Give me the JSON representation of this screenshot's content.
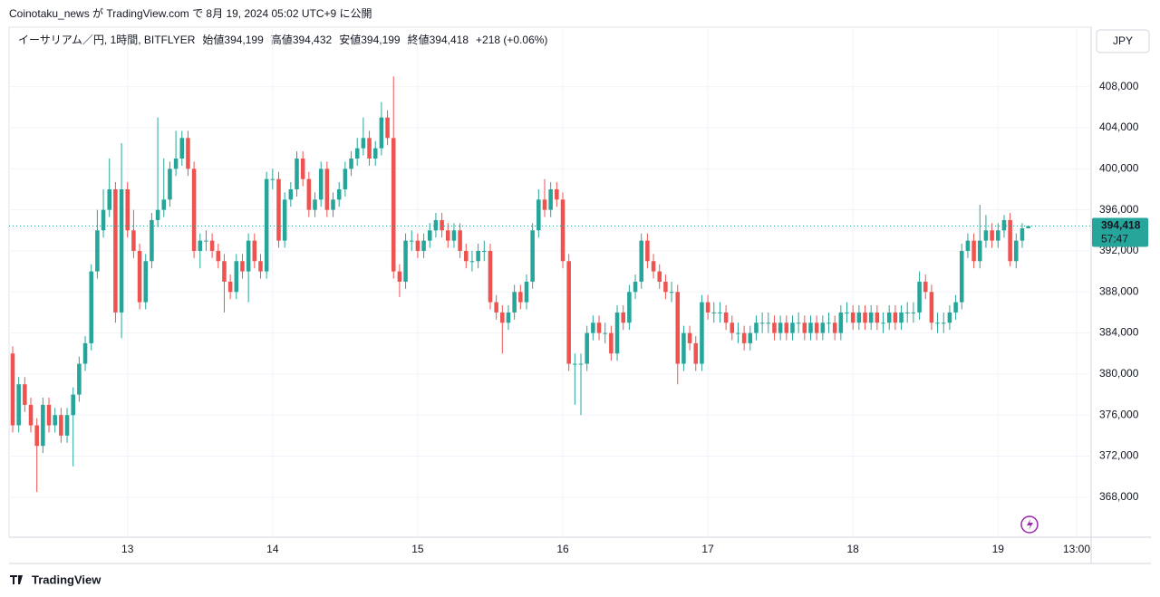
{
  "header": "Coinotaku_news が TradingView.com で 8月 19, 2024 05:02 UTC+9 に公開",
  "footer": "TradingView",
  "chart_data": {
    "type": "candlestick",
    "symbol": "イーサリアム／円, 1時間, BITFLYER",
    "legend": [
      {
        "label": "始値",
        "value": "394,199"
      },
      {
        "label": "高値",
        "value": "394,432"
      },
      {
        "label": "安値",
        "value": "394,199"
      },
      {
        "label": "終値",
        "value": "394,418"
      }
    ],
    "change": "+218 (+0.06%)",
    "currency": "JPY",
    "last_price": {
      "value": 394418,
      "label": "394,418"
    },
    "countdown": "57:47",
    "up_color": "#26a69a",
    "down_color": "#ef5350",
    "grid": true,
    "xlim": [
      -0.6,
      178.4
    ],
    "xticks": [
      {
        "value": 19,
        "label": "13"
      },
      {
        "value": 43,
        "label": "14"
      },
      {
        "value": 67,
        "label": "15"
      },
      {
        "value": 91,
        "label": "16"
      },
      {
        "value": 115,
        "label": "17"
      },
      {
        "value": 139,
        "label": "18"
      },
      {
        "value": 163,
        "label": "19"
      },
      {
        "value": 176,
        "label": "13:00"
      }
    ],
    "ylim": [
      364100,
      413800
    ],
    "yticks": [
      {
        "value": 368000,
        "label": "368,000"
      },
      {
        "value": 372000,
        "label": "372,000"
      },
      {
        "value": 376000,
        "label": "376,000"
      },
      {
        "value": 380000,
        "label": "380,000"
      },
      {
        "value": 384000,
        "label": "384,000"
      },
      {
        "value": 388000,
        "label": "388,000"
      },
      {
        "value": 392000,
        "label": "392,000"
      },
      {
        "value": 396000,
        "label": "396,000"
      },
      {
        "value": 400000,
        "label": "400,000"
      },
      {
        "value": 404000,
        "label": "404,000"
      },
      {
        "value": 408000,
        "label": "408,000"
      }
    ],
    "open": [
      382000,
      375000,
      379000,
      377000,
      375000,
      373000,
      377000,
      375000,
      376000,
      374000,
      376000,
      378000,
      381000,
      383000,
      390000,
      394000,
      396000,
      398000,
      386000,
      398000,
      394000,
      392000,
      387000,
      391000,
      395000,
      396000,
      397000,
      400000,
      401000,
      403000,
      400000,
      392000,
      393000,
      393000,
      392000,
      391000,
      389000,
      388000,
      391000,
      390000,
      393000,
      391000,
      390000,
      399000,
      399000,
      393000,
      397000,
      398000,
      401000,
      399000,
      396000,
      397000,
      400000,
      396000,
      397000,
      398000,
      400000,
      401000,
      402000,
      403000,
      401000,
      402000,
      405000,
      403000,
      390000,
      389000,
      393000,
      393000,
      392000,
      393000,
      394000,
      395000,
      394000,
      393000,
      394000,
      392000,
      391000,
      391000,
      392000,
      392000,
      387000,
      386000,
      385000,
      386000,
      388000,
      387000,
      389000,
      394000,
      397000,
      396000,
      398000,
      397000,
      391000,
      381000,
      381000,
      381000,
      384000,
      385000,
      384000,
      384000,
      382000,
      386000,
      385000,
      388000,
      389000,
      393000,
      391000,
      390000,
      389000,
      388000,
      388000,
      381000,
      384000,
      383000,
      381000,
      387000,
      386000,
      386000,
      386000,
      385000,
      384000,
      384000,
      383000,
      384000,
      385000,
      385000,
      385000,
      384000,
      385000,
      384000,
      385000,
      385000,
      384000,
      385000,
      384000,
      385000,
      385000,
      384000,
      386000,
      386000,
      385000,
      386000,
      385000,
      386000,
      385000,
      385000,
      386000,
      385000,
      386000,
      386000,
      386000,
      389000,
      388000,
      385000,
      385000,
      385000,
      386000,
      387000,
      392000,
      393000,
      391000,
      393000,
      394000,
      393000,
      394000,
      395000,
      391000,
      393000,
      394199
    ],
    "high": [
      382700,
      379700,
      379700,
      377700,
      375700,
      377700,
      377700,
      376700,
      376700,
      376700,
      378700,
      381700,
      383700,
      390700,
      396000,
      398000,
      401000,
      398700,
      402500,
      398700,
      396000,
      392700,
      391700,
      395700,
      405000,
      401000,
      400700,
      403700,
      403700,
      403700,
      400700,
      393700,
      394000,
      393700,
      392700,
      391700,
      389700,
      391700,
      391700,
      393700,
      393700,
      391700,
      399700,
      400000,
      399700,
      397700,
      398700,
      401700,
      401700,
      399700,
      397700,
      400700,
      400700,
      397700,
      398700,
      400700,
      401700,
      403000,
      405000,
      403700,
      402700,
      406500,
      405700,
      409000,
      390700,
      393700,
      394000,
      393700,
      393700,
      394700,
      395700,
      395700,
      394700,
      394700,
      394700,
      392700,
      392000,
      392700,
      393000,
      392700,
      387700,
      386700,
      386700,
      388700,
      388700,
      389700,
      394700,
      398000,
      399000,
      398700,
      398700,
      397700,
      391700,
      382000,
      382000,
      384700,
      385700,
      385700,
      385000,
      384700,
      386700,
      386700,
      388700,
      389700,
      393700,
      393700,
      391700,
      390700,
      389700,
      389000,
      388700,
      384700,
      384700,
      383700,
      387700,
      387700,
      387000,
      387000,
      386700,
      385700,
      385000,
      384700,
      384700,
      385700,
      386000,
      386000,
      385700,
      385700,
      385700,
      385700,
      386000,
      385700,
      385700,
      385700,
      385700,
      386000,
      385700,
      386700,
      387000,
      386700,
      386700,
      386700,
      386700,
      386700,
      386000,
      386700,
      386700,
      386700,
      387000,
      387000,
      390000,
      389700,
      388700,
      386000,
      386000,
      386700,
      387700,
      392700,
      393700,
      393700,
      396500,
      395500,
      394700,
      394700,
      395500,
      395700,
      393700,
      394700,
      394432
    ],
    "low": [
      374300,
      374300,
      376300,
      374300,
      368500,
      372300,
      374300,
      374300,
      373300,
      373300,
      371000,
      377300,
      380300,
      382300,
      389300,
      393300,
      395300,
      385000,
      383500,
      393300,
      391300,
      386300,
      386300,
      390300,
      394300,
      395300,
      396300,
      399300,
      400300,
      399300,
      391300,
      390300,
      392000,
      391300,
      390300,
      386000,
      387300,
      387300,
      389300,
      387000,
      390300,
      389300,
      389300,
      398000,
      392300,
      392300,
      396300,
      397300,
      398300,
      395300,
      395300,
      396300,
      395300,
      395300,
      396300,
      397300,
      399300,
      400300,
      401300,
      400300,
      400300,
      401300,
      402300,
      389300,
      387500,
      388300,
      392000,
      391300,
      391300,
      392300,
      393300,
      393300,
      392300,
      392300,
      391300,
      390300,
      390000,
      390300,
      391000,
      386300,
      385300,
      382000,
      384300,
      385300,
      386300,
      386300,
      388300,
      393300,
      395300,
      395300,
      396300,
      390300,
      380300,
      377000,
      376000,
      380300,
      383300,
      383300,
      383000,
      381300,
      381300,
      384300,
      384300,
      387300,
      388300,
      390300,
      389300,
      388300,
      387300,
      387000,
      379000,
      380300,
      382300,
      380300,
      380300,
      385300,
      385000,
      385000,
      384300,
      383300,
      383000,
      382300,
      382300,
      383300,
      384000,
      384000,
      383300,
      383300,
      383300,
      383300,
      384000,
      383300,
      383300,
      383300,
      383300,
      384000,
      383300,
      383300,
      385000,
      384300,
      384300,
      384300,
      384300,
      384300,
      384000,
      384300,
      384300,
      384300,
      385000,
      385000,
      385300,
      387300,
      384300,
      384000,
      384000,
      384300,
      385300,
      386300,
      391300,
      390300,
      390300,
      392300,
      392300,
      392300,
      393300,
      390500,
      390300,
      392300,
      394199
    ],
    "close": [
      375000,
      379000,
      377000,
      375000,
      373000,
      377000,
      375000,
      376000,
      374000,
      376000,
      378000,
      381000,
      383000,
      390000,
      394000,
      396000,
      398000,
      386000,
      398000,
      394000,
      392000,
      387000,
      391000,
      395000,
      396000,
      397000,
      400000,
      401000,
      403000,
      400000,
      392000,
      393000,
      393000,
      392000,
      391000,
      389000,
      388000,
      391000,
      390000,
      393000,
      391000,
      390000,
      399000,
      399000,
      393000,
      397000,
      398000,
      401000,
      399000,
      396000,
      397000,
      400000,
      396000,
      397000,
      398000,
      400000,
      401000,
      402000,
      403000,
      401000,
      402000,
      405000,
      403000,
      390000,
      389000,
      393000,
      393000,
      392000,
      393000,
      394000,
      395000,
      394000,
      393000,
      394000,
      392000,
      391000,
      391000,
      392000,
      392000,
      387000,
      386000,
      385000,
      386000,
      388000,
      387000,
      389000,
      394000,
      397000,
      396000,
      398000,
      397000,
      391000,
      381000,
      381000,
      381000,
      384000,
      385000,
      384000,
      384000,
      382000,
      386000,
      385000,
      388000,
      389000,
      393000,
      391000,
      390000,
      389000,
      388000,
      388000,
      381000,
      384000,
      383000,
      381000,
      387000,
      386000,
      386000,
      386000,
      385000,
      384000,
      384000,
      383000,
      384000,
      385000,
      385000,
      385000,
      384000,
      385000,
      384000,
      385000,
      385000,
      384000,
      385000,
      384000,
      385000,
      385000,
      384000,
      386000,
      386000,
      385000,
      386000,
      385000,
      386000,
      385000,
      385000,
      386000,
      385000,
      386000,
      386000,
      386000,
      389000,
      388000,
      385000,
      385000,
      385000,
      386000,
      387000,
      392000,
      393000,
      391000,
      393000,
      394000,
      393000,
      394000,
      395000,
      391000,
      393000,
      394199,
      394418
    ]
  }
}
